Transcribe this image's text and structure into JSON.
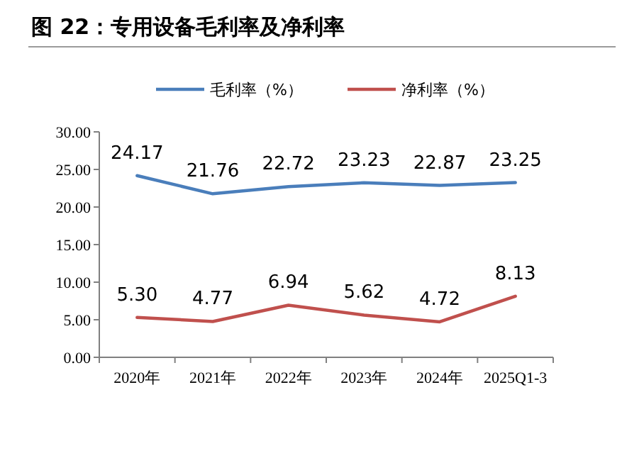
{
  "chart_data": {
    "type": "line",
    "title": "图 22：专用设备毛利率及净利率",
    "categories": [
      "2020年",
      "2021年",
      "2022年",
      "2023年",
      "2024年",
      "2025Q1-3"
    ],
    "series": [
      {
        "name": "毛利率（%）",
        "color": "#4a7ebb",
        "values": [
          24.17,
          21.76,
          22.72,
          23.23,
          22.87,
          23.25
        ],
        "value_labels": [
          "24.17",
          "21.76",
          "22.72",
          "23.23",
          "22.87",
          "23.25"
        ]
      },
      {
        "name": "净利率（%）",
        "color": "#c0504d",
        "values": [
          5.3,
          4.77,
          6.94,
          5.62,
          4.72,
          8.13
        ],
        "value_labels": [
          "5.30",
          "4.77",
          "6.94",
          "5.62",
          "4.72",
          "8.13"
        ]
      }
    ],
    "ylim": [
      0,
      30
    ],
    "yticks": [
      {
        "value": 0,
        "label": "0.00"
      },
      {
        "value": 5,
        "label": "5.00"
      },
      {
        "value": 10,
        "label": "10.00"
      },
      {
        "value": 15,
        "label": "15.00"
      },
      {
        "value": 20,
        "label": "20.00"
      },
      {
        "value": 25,
        "label": "25.00"
      },
      {
        "value": 30,
        "label": "30.00"
      }
    ],
    "legend": "top",
    "grid": false,
    "marker": "none",
    "line_style": "solid"
  }
}
